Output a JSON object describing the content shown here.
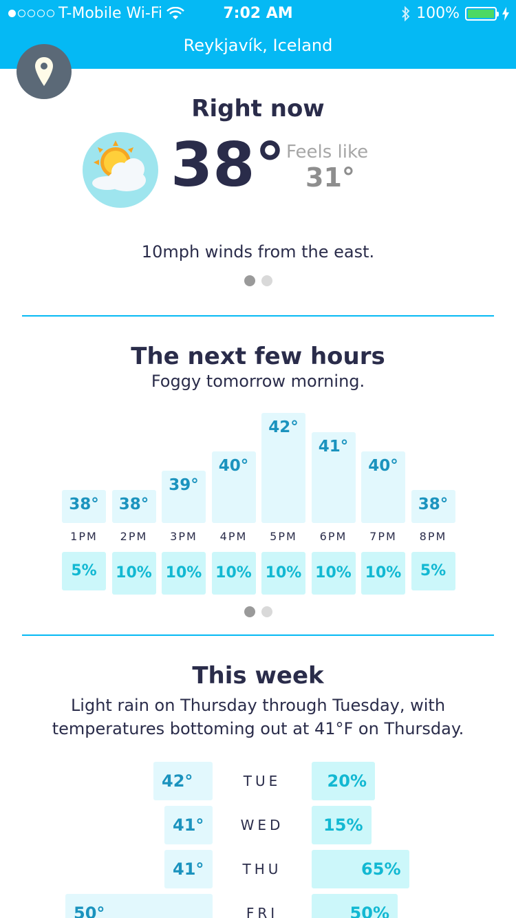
{
  "status_bar": {
    "carrier": "T-Mobile Wi-Fi",
    "time": "7:02 AM",
    "battery": "100%"
  },
  "header": {
    "location": "Reykjavík, Iceland"
  },
  "right_now": {
    "title": "Right now",
    "temperature": "38°",
    "feels_like_label": "Feels like",
    "feels_like_value": "31°",
    "summary": "10mph winds from the east.",
    "icon": "partly-cloudy-icon"
  },
  "hourly": {
    "title": "The next few hours",
    "summary": "Foggy tomorrow morning.",
    "items": [
      {
        "time": "1PM",
        "temp": "38°",
        "precip": "5%"
      },
      {
        "time": "2PM",
        "temp": "38°",
        "precip": "10%"
      },
      {
        "time": "3PM",
        "temp": "39°",
        "precip": "10%"
      },
      {
        "time": "4PM",
        "temp": "40°",
        "precip": "10%"
      },
      {
        "time": "5PM",
        "temp": "42°",
        "precip": "10%"
      },
      {
        "time": "6PM",
        "temp": "41°",
        "precip": "10%"
      },
      {
        "time": "7PM",
        "temp": "40°",
        "precip": "10%"
      },
      {
        "time": "8PM",
        "temp": "38°",
        "precip": "5%"
      }
    ]
  },
  "week": {
    "title": "This week",
    "summary": "Light rain on Thursday through Tuesday, with temperatures bottoming out at 41°F on Thursday.",
    "days": [
      {
        "day": "TUE",
        "temp": "42°",
        "precip": "20%"
      },
      {
        "day": "WED",
        "temp": "41°",
        "precip": "15%"
      },
      {
        "day": "THU",
        "temp": "41°",
        "precip": "65%"
      },
      {
        "day": "FRI",
        "temp": "50°",
        "precip": "50%"
      }
    ]
  },
  "colors": {
    "brand": "#05b9f4",
    "temp_bar": "#e2f8fd",
    "precip_bar": "#ccf7fa",
    "text_dark": "#2a2c4a"
  }
}
